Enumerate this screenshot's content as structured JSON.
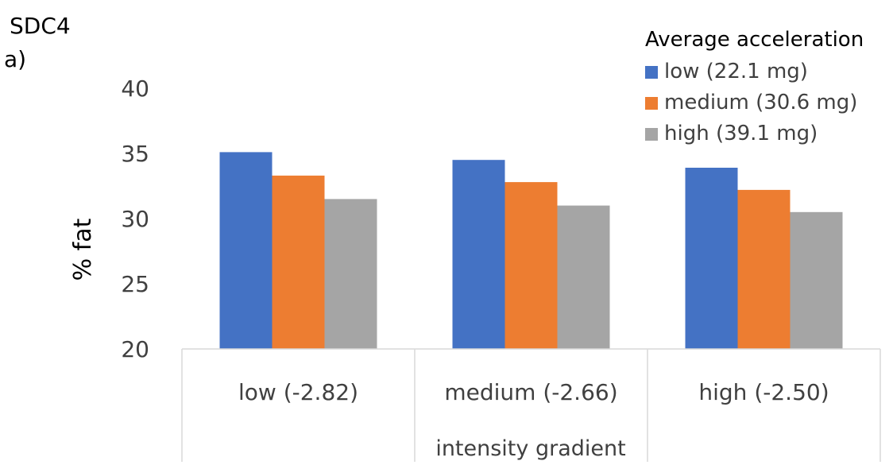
{
  "header": {
    "figure_id": "SDC4",
    "panel_label": "a)"
  },
  "chart_data": {
    "type": "bar",
    "title": "",
    "xlabel": "intensity gradient",
    "ylabel": "% fat",
    "ylim": [
      20,
      40
    ],
    "yticks": [
      20,
      25,
      30,
      35,
      40
    ],
    "categories": [
      "low (-2.82)",
      "medium (-2.66)",
      "high (-2.50)"
    ],
    "legend_title": "Average acceleration",
    "legend_position": "top-right",
    "grid": false,
    "series": [
      {
        "name": "low (22.1 mg)",
        "color": "#4472C4",
        "values": [
          35.1,
          34.5,
          33.9
        ]
      },
      {
        "name": "medium (30.6 mg)",
        "color": "#ED7D31",
        "values": [
          33.3,
          32.8,
          32.2
        ]
      },
      {
        "name": "high (39.1 mg)",
        "color": "#A5A5A5",
        "values": [
          31.5,
          31.0,
          30.5
        ]
      }
    ]
  }
}
